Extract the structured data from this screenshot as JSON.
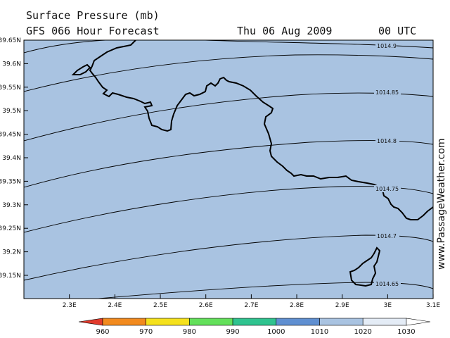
{
  "header": {
    "title": "Surface Pressure (mb)",
    "subtitle": "GFS 066 Hour Forecast",
    "date": "Thu 06 Aug 2009",
    "time": "00 UTC"
  },
  "watermark": "www.PassageWeather.com",
  "colors": {
    "sea_fill": "#a9c3e1",
    "coast": "#000000",
    "isobar": "#000000"
  },
  "map": {
    "lon_range": [
      2.2,
      3.1
    ],
    "lat_range": [
      39.1,
      39.65
    ],
    "lon_ticks": [
      "2.3E",
      "2.4E",
      "2.5E",
      "2.6E",
      "2.7E",
      "2.8E",
      "2.9E",
      "3E",
      "3.1E"
    ],
    "lat_ticks": [
      "39.65N",
      "39.6N",
      "39.55N",
      "39.5N",
      "39.45N",
      "39.4N",
      "39.35N",
      "39.3N",
      "39.25N",
      "39.2N",
      "39.15N"
    ],
    "isobar_labels": [
      "1014.9",
      "1014.85",
      "1014.8",
      "1014.75",
      "1014.7",
      "1014.65"
    ]
  },
  "colorbar": {
    "labels": [
      "960",
      "970",
      "980",
      "990",
      "1000",
      "1010",
      "1020",
      "1030"
    ],
    "colors": [
      "#e23a2c",
      "#f28a1e",
      "#f5e11c",
      "#63e05a",
      "#2fc38f",
      "#5f8fd1",
      "#a9c3e1",
      "#e4ecf6",
      "#ffffff"
    ]
  }
}
